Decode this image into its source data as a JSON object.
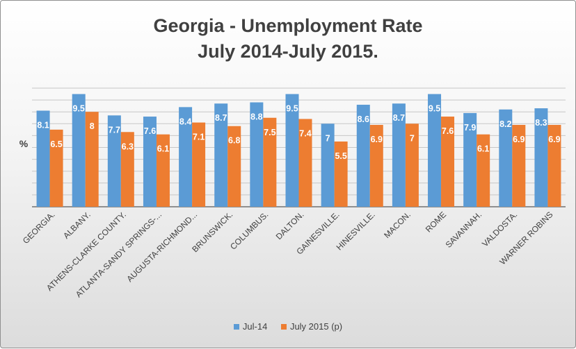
{
  "chart_data": {
    "type": "bar",
    "title_line1": "Georgia - Unemployment Rate",
    "title_line2": "July 2014-July 2015.",
    "ylabel": "%",
    "categories": [
      "GEORGIA.",
      "ALBANY.",
      "ATHENS-CLARKE COUNTY.",
      "ATLANTA-SANDY SPRINGS-...",
      "AUGUSTA-RICHMOND...",
      "BRUNSWICK.",
      "COLUMBUS.",
      "DALTON.",
      "GAINESVILLE.",
      "HINESVILLE.",
      "MACON.",
      "ROME",
      "SAVANNAH.",
      "VALDOSTA.",
      "WARNER ROBINS"
    ],
    "series": [
      {
        "name": "Jul-14",
        "color": "#5b9bd5",
        "values": [
          8.1,
          9.5,
          7.7,
          7.6,
          8.4,
          8.7,
          8.8,
          9.5,
          7,
          8.6,
          8.7,
          9.5,
          7.9,
          8.2,
          8.3
        ]
      },
      {
        "name": "July 2015 (p)",
        "color": "#ed7d31",
        "values": [
          6.5,
          8,
          6.3,
          6.1,
          7.1,
          6.8,
          7.5,
          7.4,
          5.5,
          6.9,
          7,
          7.6,
          6.1,
          6.9,
          6.9
        ]
      }
    ],
    "ylim": [
      0,
      10
    ],
    "grid": true,
    "y_tick_labels_shown": false,
    "data_labels": true,
    "legend_position": "bottom"
  }
}
